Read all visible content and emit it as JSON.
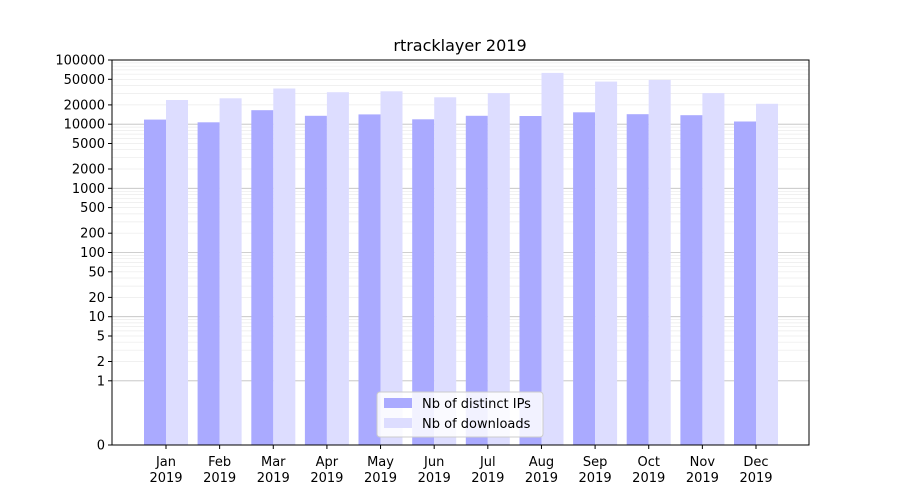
{
  "chart_data": {
    "type": "bar",
    "title": "rtracklayer 2019",
    "xlabel": "",
    "ylabel": "",
    "yscale": "symlog",
    "ylim": [
      0,
      100000
    ],
    "categories": [
      "Jan\n2019",
      "Feb\n2019",
      "Mar\n2019",
      "Apr\n2019",
      "May\n2019",
      "Jun\n2019",
      "Jul\n2019",
      "Aug\n2019",
      "Sep\n2019",
      "Oct\n2019",
      "Nov\n2019",
      "Dec\n2019"
    ],
    "series": [
      {
        "name": "Nb of distinct IPs",
        "color": "#aaaaff",
        "values": [
          11800,
          10700,
          16500,
          13500,
          14200,
          11900,
          13500,
          13400,
          15300,
          14300,
          13800,
          11000
        ]
      },
      {
        "name": "Nb of downloads",
        "color": "#ddddff",
        "values": [
          23800,
          25300,
          36000,
          31500,
          32500,
          26200,
          30500,
          63000,
          46000,
          49000,
          30500,
          20800
        ]
      }
    ],
    "yticks": [
      {
        "value": 0,
        "label": "0"
      },
      {
        "value": 1,
        "label": "1"
      },
      {
        "value": 2,
        "label": "2"
      },
      {
        "value": 5,
        "label": "5"
      },
      {
        "value": 10,
        "label": "10"
      },
      {
        "value": 20,
        "label": "20"
      },
      {
        "value": 50,
        "label": "50"
      },
      {
        "value": 100,
        "label": "100"
      },
      {
        "value": 200,
        "label": "200"
      },
      {
        "value": 500,
        "label": "500"
      },
      {
        "value": 1000,
        "label": "1000"
      },
      {
        "value": 2000,
        "label": "2000"
      },
      {
        "value": 5000,
        "label": "5000"
      },
      {
        "value": 10000,
        "label": "10000"
      },
      {
        "value": 20000,
        "label": "20000"
      },
      {
        "value": 50000,
        "label": "50000"
      },
      {
        "value": 100000,
        "label": "100000"
      }
    ],
    "grid": true,
    "legend_position": "bottom-center"
  }
}
